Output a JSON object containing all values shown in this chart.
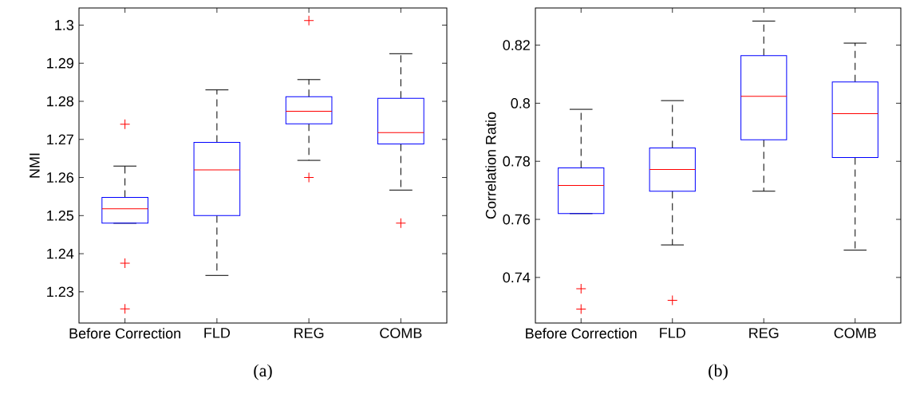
{
  "chart_data": [
    {
      "type": "box",
      "ylabel": "NMI",
      "categories": [
        "Before Correction",
        "FLD",
        "REG",
        "COMB"
      ],
      "ylim": [
        1.2218,
        1.3045
      ],
      "yticks": [
        1.23,
        1.24,
        1.25,
        1.26,
        1.27,
        1.28,
        1.29,
        1.3
      ],
      "series": [
        {
          "color": "#0000ff",
          "boxes": [
            {
              "low": 1.248,
              "q1": 1.248,
              "median": 1.2518,
              "q3": 1.2548,
              "high": 1.263,
              "outliers": [
                1.274,
                1.2375,
                1.2255
              ]
            },
            {
              "low": 1.2343,
              "q1": 1.25,
              "median": 1.262,
              "q3": 1.2692,
              "high": 1.283
            },
            {
              "low": 1.2645,
              "q1": 1.2741,
              "median": 1.2774,
              "q3": 1.2812,
              "high": 1.2857,
              "outliers": [
                1.3012,
                1.26
              ]
            },
            {
              "low": 1.2567,
              "q1": 1.2688,
              "median": 1.2718,
              "q3": 1.2808,
              "high": 1.2925,
              "outliers": [
                1.248
              ]
            }
          ]
        }
      ],
      "annotations": [
        "(a)"
      ]
    },
    {
      "type": "box",
      "ylabel": "Correlation Ratio",
      "categories": [
        "Before Correction",
        "FLD",
        "REG",
        "COMB"
      ],
      "ylim": [
        0.7243,
        0.8328
      ],
      "yticks": [
        0.74,
        0.76,
        0.78,
        0.8,
        0.82
      ],
      "series": [
        {
          "color": "#0000ff",
          "boxes": [
            {
              "low": 0.762,
              "q1": 0.762,
              "median": 0.7717,
              "q3": 0.7777,
              "high": 0.7979,
              "outliers": [
                0.7361,
                0.7291
              ]
            },
            {
              "low": 0.7512,
              "q1": 0.7697,
              "median": 0.7772,
              "q3": 0.7846,
              "high": 0.8009,
              "outliers": [
                0.7321
              ]
            },
            {
              "low": 0.7697,
              "q1": 0.7874,
              "median": 0.8024,
              "q3": 0.8164,
              "high": 0.8283
            },
            {
              "low": 0.7494,
              "q1": 0.7813,
              "median": 0.7964,
              "q3": 0.8073,
              "high": 0.8207
            }
          ]
        }
      ],
      "annotations": [
        "(b)"
      ]
    }
  ]
}
